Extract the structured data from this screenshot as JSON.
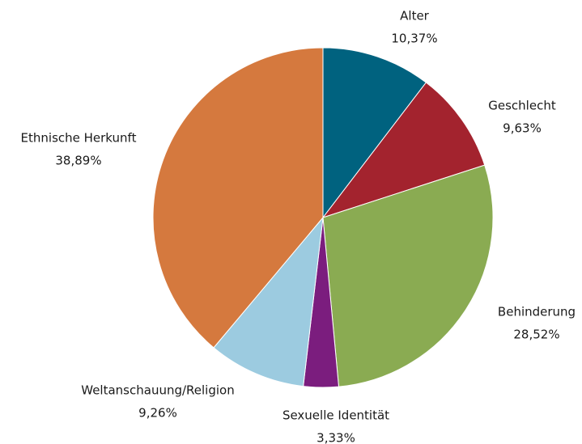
{
  "chart_data": {
    "type": "pie",
    "categories": [
      "Alter",
      "Geschlecht",
      "Behinderung",
      "Sexuelle Identität",
      "Weltanschauung/Religion",
      "Ethnische Herkunft"
    ],
    "values": [
      10.37,
      9.63,
      28.52,
      3.33,
      9.26,
      38.89
    ],
    "value_labels": [
      "10,37%",
      "9,63%",
      "28,52%",
      "3,33%",
      "9,26%",
      "38,89%"
    ],
    "colors": [
      "#00627f",
      "#a3232e",
      "#8aab52",
      "#7b1d7e",
      "#9ccbe0",
      "#d5793e"
    ]
  }
}
